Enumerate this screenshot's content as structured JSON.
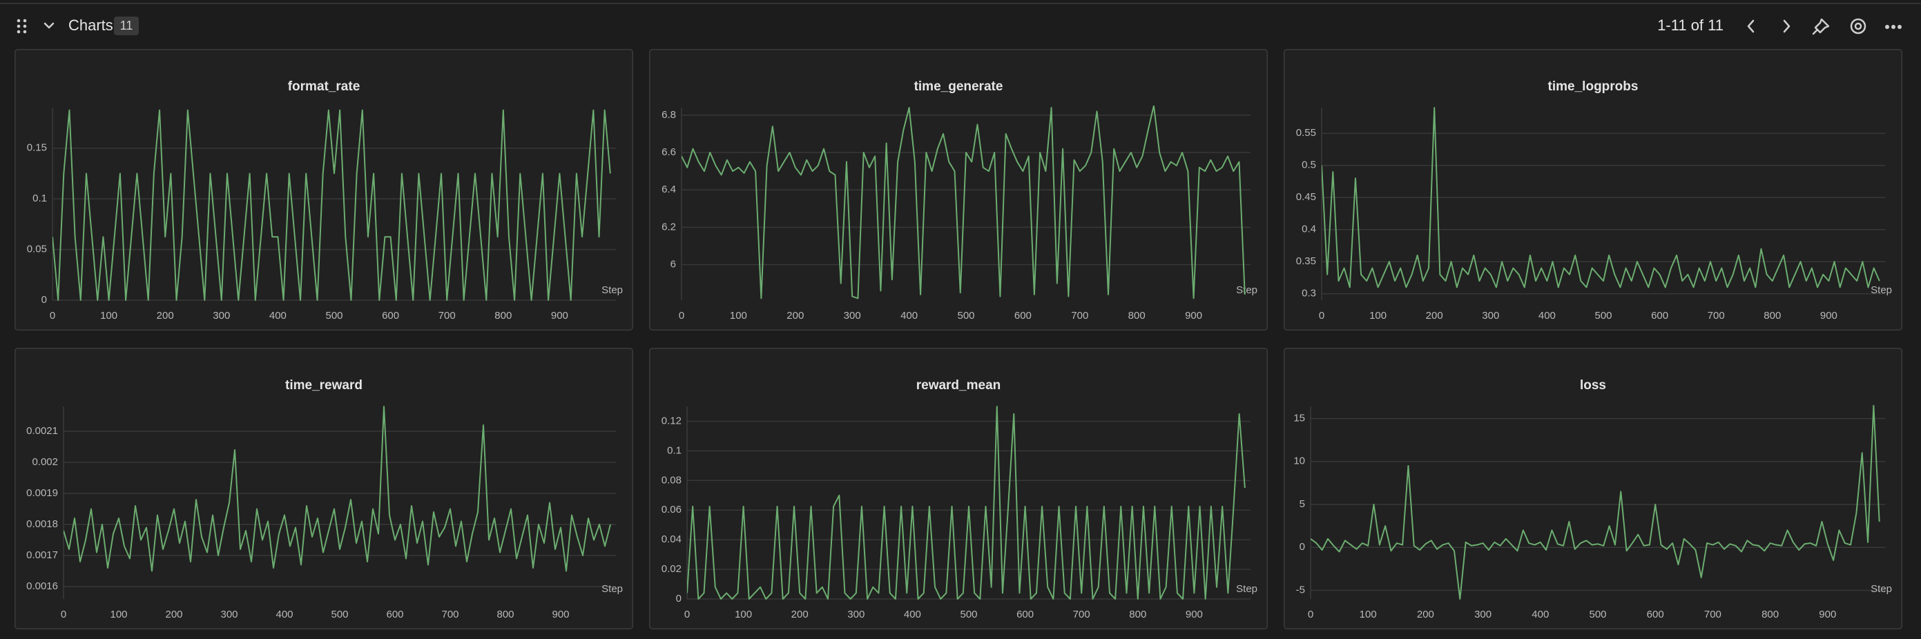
{
  "header": {
    "title": "Charts",
    "count": 11,
    "pagination": "1-11 of 11"
  },
  "chart_data": [
    {
      "type": "line",
      "title": "format_rate",
      "x_label": "Step",
      "color": "#6cad70",
      "grid": true,
      "x": [
        0,
        10,
        20,
        30,
        40,
        50,
        60,
        70,
        80,
        90,
        100,
        110,
        120,
        130,
        140,
        150,
        160,
        170,
        180,
        190,
        200,
        210,
        220,
        230,
        240,
        250,
        260,
        270,
        280,
        290,
        300,
        310,
        320,
        330,
        340,
        350,
        360,
        370,
        380,
        390,
        400,
        410,
        420,
        430,
        440,
        450,
        460,
        470,
        480,
        490,
        500,
        510,
        520,
        530,
        540,
        550,
        560,
        570,
        580,
        590,
        600,
        610,
        620,
        630,
        640,
        650,
        660,
        670,
        680,
        690,
        700,
        710,
        720,
        730,
        740,
        750,
        760,
        770,
        780,
        790,
        800,
        810,
        820,
        830,
        840,
        850,
        860,
        870,
        880,
        890,
        900,
        910,
        920,
        930,
        940,
        950,
        960,
        970,
        980,
        990
      ],
      "values": [
        0.0625,
        0,
        0.125,
        0.1875,
        0.0625,
        0,
        0.125,
        0.0625,
        0,
        0.0625,
        0,
        0.0625,
        0.125,
        0,
        0.0625,
        0.125,
        0.0625,
        0,
        0.125,
        0.1875,
        0.0625,
        0.125,
        0,
        0.0625,
        0.1875,
        0.125,
        0.0625,
        0,
        0.125,
        0.0625,
        0,
        0.125,
        0.0625,
        0,
        0.0625,
        0.125,
        0,
        0.0625,
        0.125,
        0.0625,
        0.0625,
        0,
        0.125,
        0.0625,
        0,
        0.125,
        0.0625,
        0,
        0.125,
        0.1875,
        0.125,
        0.1875,
        0.0625,
        0,
        0.125,
        0.1875,
        0.0625,
        0.125,
        0,
        0.0625,
        0.0625,
        0,
        0.125,
        0.0625,
        0,
        0.125,
        0.0625,
        0,
        0.0625,
        0.125,
        0,
        0.0625,
        0.125,
        0,
        0.0625,
        0.125,
        0.0625,
        0,
        0.125,
        0.0625,
        0.1875,
        0.0625,
        0,
        0.125,
        0.0625,
        0,
        0.0625,
        0.125,
        0,
        0.0625,
        0.125,
        0.0625,
        0,
        0.125,
        0.0625,
        0.125,
        0.1875,
        0.0625,
        0.1875,
        0.125
      ],
      "xlim": [
        0,
        1000
      ],
      "xticks": [
        0,
        100,
        200,
        300,
        400,
        500,
        600,
        700,
        800,
        900
      ],
      "ylim": [
        0,
        0.19
      ],
      "yticks": [
        0,
        0.05,
        0.1,
        0.15
      ]
    },
    {
      "type": "line",
      "title": "time_generate",
      "x_label": "Step",
      "color": "#6cad70",
      "grid": true,
      "x": [
        0,
        10,
        20,
        30,
        40,
        50,
        60,
        70,
        80,
        90,
        100,
        110,
        120,
        130,
        140,
        150,
        160,
        170,
        180,
        190,
        200,
        210,
        220,
        230,
        240,
        250,
        260,
        270,
        280,
        290,
        300,
        310,
        320,
        330,
        340,
        350,
        360,
        370,
        380,
        390,
        400,
        410,
        420,
        430,
        440,
        450,
        460,
        470,
        480,
        490,
        500,
        510,
        520,
        530,
        540,
        550,
        560,
        570,
        580,
        590,
        600,
        610,
        620,
        630,
        640,
        650,
        660,
        670,
        680,
        690,
        700,
        710,
        720,
        730,
        740,
        750,
        760,
        770,
        780,
        790,
        800,
        810,
        820,
        830,
        840,
        850,
        860,
        870,
        880,
        890,
        900,
        910,
        920,
        930,
        940,
        950,
        960,
        970,
        980,
        990
      ],
      "values": [
        6.58,
        6.52,
        6.62,
        6.55,
        6.5,
        6.6,
        6.53,
        6.48,
        6.56,
        6.5,
        6.52,
        6.49,
        6.55,
        6.5,
        5.82,
        6.53,
        6.74,
        6.5,
        6.55,
        6.6,
        6.52,
        6.48,
        6.56,
        6.5,
        6.53,
        6.62,
        6.5,
        6.48,
        5.9,
        6.55,
        5.83,
        5.82,
        6.6,
        6.52,
        6.58,
        5.86,
        6.65,
        5.92,
        6.55,
        6.72,
        6.84,
        6.55,
        5.84,
        6.6,
        6.5,
        6.62,
        6.7,
        6.55,
        6.5,
        5.85,
        6.6,
        6.55,
        6.75,
        6.52,
        6.5,
        6.6,
        5.83,
        6.7,
        6.62,
        6.55,
        6.5,
        6.58,
        5.84,
        6.6,
        6.5,
        6.84,
        5.9,
        6.62,
        5.83,
        6.56,
        6.5,
        6.53,
        6.6,
        6.82,
        6.55,
        5.84,
        6.62,
        6.5,
        6.55,
        6.6,
        6.52,
        6.58,
        6.72,
        6.85,
        6.6,
        6.5,
        6.55,
        6.53,
        6.6,
        6.5,
        5.82,
        6.52,
        6.5,
        6.56,
        6.5,
        6.52,
        6.58,
        6.5,
        6.55,
        5.84
      ],
      "xlim": [
        0,
        1000
      ],
      "xticks": [
        0,
        100,
        200,
        300,
        400,
        500,
        600,
        700,
        800,
        900
      ],
      "ylim": [
        5.81,
        6.84
      ],
      "yticks": [
        6,
        6.2,
        6.4,
        6.6,
        6.8
      ]
    },
    {
      "type": "line",
      "title": "time_logprobs",
      "x_label": "Step",
      "color": "#6cad70",
      "grid": true,
      "x": [
        0,
        10,
        20,
        30,
        40,
        50,
        60,
        70,
        80,
        90,
        100,
        110,
        120,
        130,
        140,
        150,
        160,
        170,
        180,
        190,
        200,
        210,
        220,
        230,
        240,
        250,
        260,
        270,
        280,
        290,
        300,
        310,
        320,
        330,
        340,
        350,
        360,
        370,
        380,
        390,
        400,
        410,
        420,
        430,
        440,
        450,
        460,
        470,
        480,
        490,
        500,
        510,
        520,
        530,
        540,
        550,
        560,
        570,
        580,
        590,
        600,
        610,
        620,
        630,
        640,
        650,
        660,
        670,
        680,
        690,
        700,
        710,
        720,
        730,
        740,
        750,
        760,
        770,
        780,
        790,
        800,
        810,
        820,
        830,
        840,
        850,
        860,
        870,
        880,
        890,
        900,
        910,
        920,
        930,
        940,
        950,
        960,
        970,
        980,
        990
      ],
      "values": [
        0.5,
        0.33,
        0.49,
        0.32,
        0.34,
        0.31,
        0.48,
        0.33,
        0.32,
        0.34,
        0.31,
        0.33,
        0.35,
        0.32,
        0.34,
        0.31,
        0.33,
        0.36,
        0.32,
        0.34,
        0.59,
        0.33,
        0.32,
        0.35,
        0.31,
        0.34,
        0.33,
        0.36,
        0.32,
        0.34,
        0.33,
        0.31,
        0.35,
        0.32,
        0.34,
        0.33,
        0.31,
        0.36,
        0.32,
        0.34,
        0.32,
        0.35,
        0.31,
        0.34,
        0.33,
        0.36,
        0.32,
        0.31,
        0.34,
        0.33,
        0.32,
        0.36,
        0.33,
        0.31,
        0.34,
        0.32,
        0.35,
        0.33,
        0.31,
        0.34,
        0.33,
        0.31,
        0.34,
        0.36,
        0.32,
        0.33,
        0.31,
        0.34,
        0.32,
        0.35,
        0.32,
        0.34,
        0.31,
        0.33,
        0.36,
        0.32,
        0.34,
        0.31,
        0.37,
        0.33,
        0.32,
        0.34,
        0.36,
        0.31,
        0.33,
        0.35,
        0.32,
        0.34,
        0.31,
        0.33,
        0.32,
        0.35,
        0.31,
        0.34,
        0.33,
        0.32,
        0.35,
        0.31,
        0.34,
        0.32
      ],
      "xlim": [
        0,
        1000
      ],
      "xticks": [
        0,
        100,
        200,
        300,
        400,
        500,
        600,
        700,
        800,
        900
      ],
      "ylim": [
        0.29,
        0.59
      ],
      "yticks": [
        0.3,
        0.35,
        0.4,
        0.45,
        0.5,
        0.55
      ]
    },
    {
      "type": "line",
      "title": "time_reward",
      "x_label": "Step",
      "color": "#6cad70",
      "grid": true,
      "x": [
        0,
        10,
        20,
        30,
        40,
        50,
        60,
        70,
        80,
        90,
        100,
        110,
        120,
        130,
        140,
        150,
        160,
        170,
        180,
        190,
        200,
        210,
        220,
        230,
        240,
        250,
        260,
        270,
        280,
        290,
        300,
        310,
        320,
        330,
        340,
        350,
        360,
        370,
        380,
        390,
        400,
        410,
        420,
        430,
        440,
        450,
        460,
        470,
        480,
        490,
        500,
        510,
        520,
        530,
        540,
        550,
        560,
        570,
        580,
        590,
        600,
        610,
        620,
        630,
        640,
        650,
        660,
        670,
        680,
        690,
        700,
        710,
        720,
        730,
        740,
        750,
        760,
        770,
        780,
        790,
        800,
        810,
        820,
        830,
        840,
        850,
        860,
        870,
        880,
        890,
        900,
        910,
        920,
        930,
        940,
        950,
        960,
        970,
        980,
        990
      ],
      "values": [
        0.00178,
        0.00172,
        0.00182,
        0.00168,
        0.00175,
        0.00185,
        0.00171,
        0.0018,
        0.00166,
        0.00177,
        0.00182,
        0.00173,
        0.00169,
        0.00186,
        0.00175,
        0.00179,
        0.00165,
        0.00183,
        0.00172,
        0.00178,
        0.00185,
        0.00174,
        0.00181,
        0.00168,
        0.00188,
        0.00176,
        0.00171,
        0.00183,
        0.0017,
        0.00179,
        0.00187,
        0.00204,
        0.00172,
        0.00178,
        0.00168,
        0.00185,
        0.00175,
        0.00181,
        0.00166,
        0.00177,
        0.00183,
        0.00173,
        0.00179,
        0.00167,
        0.00186,
        0.00176,
        0.00182,
        0.00171,
        0.00178,
        0.00185,
        0.00172,
        0.00179,
        0.00188,
        0.00174,
        0.00181,
        0.00168,
        0.00185,
        0.00177,
        0.00218,
        0.00183,
        0.00175,
        0.0018,
        0.00169,
        0.00186,
        0.00174,
        0.00181,
        0.00167,
        0.00184,
        0.00176,
        0.00179,
        0.00185,
        0.00173,
        0.00181,
        0.00168,
        0.00177,
        0.00184,
        0.00212,
        0.00175,
        0.00182,
        0.00171,
        0.00178,
        0.00185,
        0.00169,
        0.00176,
        0.00183,
        0.00166,
        0.0018,
        0.00174,
        0.00187,
        0.00172,
        0.00179,
        0.00165,
        0.00183,
        0.00176,
        0.0017,
        0.00182,
        0.00175,
        0.0018,
        0.00173,
        0.0018
      ],
      "xlim": [
        0,
        1000
      ],
      "xticks": [
        0,
        100,
        200,
        300,
        400,
        500,
        600,
        700,
        800,
        900
      ],
      "ylim": [
        0.00156,
        0.00218
      ],
      "yticks": [
        0.0016,
        0.0017,
        0.0018,
        0.0019,
        0.002,
        0.0021
      ]
    },
    {
      "type": "line",
      "title": "reward_mean",
      "x_label": "Step",
      "color": "#6cad70",
      "grid": true,
      "x": [
        0,
        10,
        20,
        30,
        40,
        50,
        60,
        70,
        80,
        90,
        100,
        110,
        120,
        130,
        140,
        150,
        160,
        170,
        180,
        190,
        200,
        210,
        220,
        230,
        240,
        250,
        260,
        270,
        280,
        290,
        300,
        310,
        320,
        330,
        340,
        350,
        360,
        370,
        380,
        390,
        400,
        410,
        420,
        430,
        440,
        450,
        460,
        470,
        480,
        490,
        500,
        510,
        520,
        530,
        540,
        550,
        560,
        570,
        580,
        590,
        600,
        610,
        620,
        630,
        640,
        650,
        660,
        670,
        680,
        690,
        700,
        710,
        720,
        730,
        740,
        750,
        760,
        770,
        780,
        790,
        800,
        810,
        820,
        830,
        840,
        850,
        860,
        870,
        880,
        890,
        900,
        910,
        920,
        930,
        940,
        950,
        960,
        970,
        980,
        990
      ],
      "values": [
        0.004,
        0.0625,
        0,
        0.004,
        0.0625,
        0.008,
        0,
        0.004,
        0,
        0.004,
        0.0625,
        0,
        0.004,
        0.008,
        0,
        0.004,
        0.0625,
        0,
        0.004,
        0.0625,
        0.004,
        0,
        0.0625,
        0.004,
        0.008,
        0,
        0.0625,
        0.07,
        0.004,
        0,
        0.004,
        0.0625,
        0,
        0.008,
        0.004,
        0.0625,
        0.004,
        0,
        0.0625,
        0.004,
        0.0625,
        0,
        0.004,
        0.0625,
        0.008,
        0,
        0.004,
        0.0625,
        0,
        0.004,
        0.0625,
        0.004,
        0,
        0.0625,
        0.008,
        0.13,
        0.004,
        0.0625,
        0.125,
        0.004,
        0.0625,
        0,
        0.004,
        0.0625,
        0.008,
        0,
        0.0625,
        0.004,
        0,
        0.0625,
        0.004,
        0.0625,
        0,
        0.008,
        0.0625,
        0.004,
        0,
        0.0625,
        0.004,
        0.0625,
        0,
        0.0625,
        0.004,
        0.0625,
        0,
        0.008,
        0.0625,
        0.004,
        0,
        0.0625,
        0.004,
        0.0625,
        0,
        0.0625,
        0.008,
        0.0625,
        0.004,
        0.0625,
        0.125,
        0.075
      ],
      "xlim": [
        0,
        1000
      ],
      "xticks": [
        0,
        100,
        200,
        300,
        400,
        500,
        600,
        700,
        800,
        900
      ],
      "ylim": [
        0,
        0.13
      ],
      "yticks": [
        0,
        0.02,
        0.04,
        0.06,
        0.08,
        0.1,
        0.12
      ]
    },
    {
      "type": "line",
      "title": "loss",
      "x_label": "Step",
      "color": "#6cad70",
      "grid": true,
      "x": [
        0,
        10,
        20,
        30,
        40,
        50,
        60,
        70,
        80,
        90,
        100,
        110,
        120,
        130,
        140,
        150,
        160,
        170,
        180,
        190,
        200,
        210,
        220,
        230,
        240,
        250,
        260,
        270,
        280,
        290,
        300,
        310,
        320,
        330,
        340,
        350,
        360,
        370,
        380,
        390,
        400,
        410,
        420,
        430,
        440,
        450,
        460,
        470,
        480,
        490,
        500,
        510,
        520,
        530,
        540,
        550,
        560,
        570,
        580,
        590,
        600,
        610,
        620,
        630,
        640,
        650,
        660,
        670,
        680,
        690,
        700,
        710,
        720,
        730,
        740,
        750,
        760,
        770,
        780,
        790,
        800,
        810,
        820,
        830,
        840,
        850,
        860,
        870,
        880,
        890,
        900,
        910,
        920,
        930,
        940,
        950,
        960,
        970,
        980,
        990
      ],
      "values": [
        1,
        0.5,
        -0.3,
        1,
        0.2,
        -0.5,
        0.8,
        0.3,
        -0.2,
        0.5,
        0.2,
        5,
        0.3,
        2.5,
        -0.4,
        0.5,
        0.3,
        9.5,
        0.2,
        -0.3,
        0.4,
        0.8,
        -0.2,
        0.3,
        0.5,
        -0.4,
        -6,
        0.6,
        0.2,
        0.3,
        0.5,
        -0.3,
        0.6,
        0.2,
        1,
        0.3,
        -0.4,
        2,
        0.5,
        0.3,
        0.6,
        -0.3,
        2,
        0.4,
        0.2,
        3,
        -0.2,
        0.5,
        0.8,
        0.3,
        0.4,
        0.2,
        2.5,
        0.3,
        6.5,
        -0.4,
        0.5,
        1.5,
        0.2,
        0.3,
        5,
        0.3,
        -0.2,
        0.5,
        -2,
        1,
        0.4,
        -0.3,
        -3.5,
        0.5,
        0.3,
        0.6,
        -0.2,
        0.4,
        0.2,
        -0.5,
        0.8,
        0.3,
        0.2,
        -0.4,
        0.5,
        0.3,
        0.2,
        2,
        0.6,
        -0.3,
        0.4,
        0.5,
        0.2,
        3,
        0.4,
        -1.5,
        2,
        0.5,
        0.3,
        4,
        11,
        0.6,
        16.5,
        3
      ],
      "xlim": [
        0,
        1000
      ],
      "xticks": [
        0,
        100,
        200,
        300,
        400,
        500,
        600,
        700,
        800,
        900
      ],
      "ylim": [
        -6,
        16.4
      ],
      "yticks": [
        -5,
        0,
        5,
        10,
        15
      ]
    }
  ]
}
